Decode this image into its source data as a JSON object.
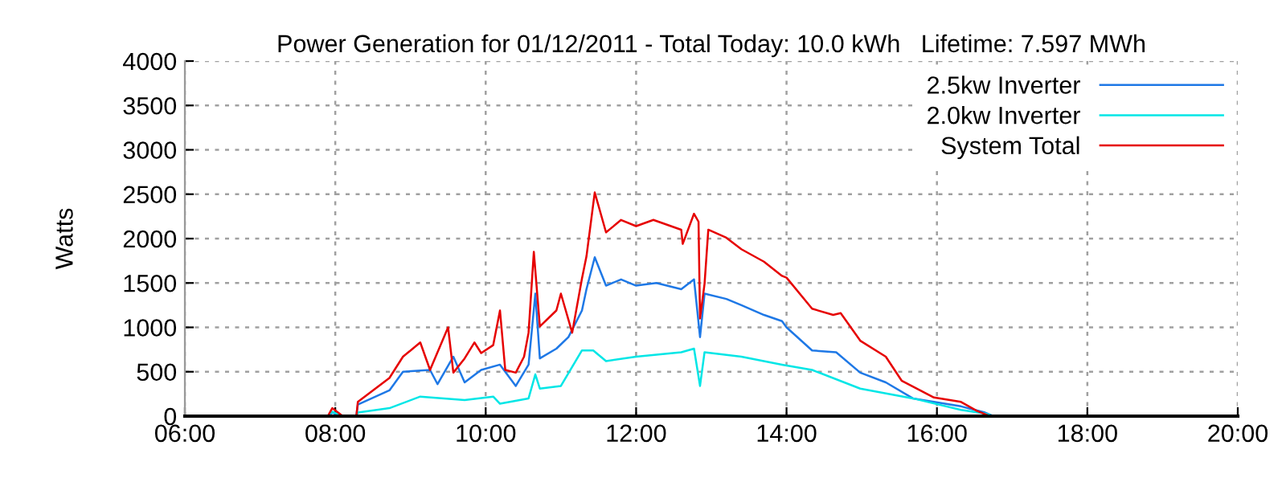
{
  "chart_data": {
    "type": "line",
    "title": "Power Generation for 01/12/2011 - Total Today: 10.0 kWh   Lifetime: 7.597 MWh",
    "ylabel": "Watts",
    "xlim": [
      6,
      20
    ],
    "xticks": [
      {
        "value": 6,
        "label": "06:00"
      },
      {
        "value": 8,
        "label": "08:00"
      },
      {
        "value": 10,
        "label": "10:00"
      },
      {
        "value": 12,
        "label": "12:00"
      },
      {
        "value": 14,
        "label": "14:00"
      },
      {
        "value": 16,
        "label": "16:00"
      },
      {
        "value": 18,
        "label": "18:00"
      },
      {
        "value": 20,
        "label": "20:00"
      }
    ],
    "ylim": [
      0,
      4000
    ],
    "yticks": [
      0,
      500,
      1000,
      1500,
      2000,
      2500,
      3000,
      3500,
      4000
    ],
    "grid": true,
    "legend": "top right",
    "line_style": "solid",
    "marker": "none",
    "series": [
      {
        "name": "2.5kw Inverter",
        "color": "#1e78e6",
        "x": [
          7.9,
          7.96,
          8.1,
          8.28,
          8.3,
          8.72,
          8.9,
          9.26,
          9.36,
          9.57,
          9.72,
          9.94,
          10.19,
          10.4,
          10.57,
          10.66,
          10.72,
          10.94,
          11.1,
          11.28,
          11.34,
          11.45,
          11.6,
          11.8,
          12.0,
          12.27,
          12.6,
          12.77,
          12.85,
          12.91,
          13.2,
          13.4,
          13.7,
          13.94,
          14.0,
          14.34,
          14.66,
          14.98,
          15.32,
          15.68,
          16.32,
          16.64,
          16.75
        ],
        "values": [
          0,
          40,
          0,
          0,
          130,
          290,
          500,
          520,
          360,
          670,
          380,
          520,
          580,
          340,
          580,
          1380,
          650,
          760,
          890,
          1190,
          1430,
          1790,
          1470,
          1540,
          1470,
          1500,
          1430,
          1540,
          890,
          1380,
          1320,
          1250,
          1140,
          1070,
          1000,
          740,
          720,
          490,
          380,
          200,
          110,
          40,
          0
        ]
      },
      {
        "name": "2.0kw Inverter",
        "color": "#00e6e6",
        "x": [
          7.9,
          7.96,
          8.1,
          8.28,
          8.3,
          8.72,
          9.13,
          9.72,
          10.1,
          10.19,
          10.57,
          10.66,
          10.72,
          11.0,
          11.28,
          11.43,
          11.6,
          12.0,
          12.6,
          12.77,
          12.85,
          12.91,
          13.4,
          13.94,
          14.34,
          14.98,
          15.68,
          16.32,
          16.64,
          16.75
        ],
        "values": [
          0,
          50,
          0,
          0,
          40,
          90,
          220,
          180,
          220,
          140,
          200,
          470,
          310,
          340,
          740,
          740,
          620,
          670,
          720,
          760,
          340,
          720,
          670,
          580,
          520,
          310,
          200,
          70,
          30,
          0
        ]
      },
      {
        "name": "System Total",
        "color": "#e60000",
        "x": [
          7.9,
          7.96,
          8.1,
          8.28,
          8.3,
          8.72,
          8.9,
          9.13,
          9.26,
          9.5,
          9.57,
          9.72,
          9.85,
          9.94,
          10.1,
          10.19,
          10.26,
          10.4,
          10.51,
          10.57,
          10.64,
          10.72,
          10.94,
          11.0,
          11.15,
          11.28,
          11.34,
          11.45,
          11.6,
          11.8,
          12.0,
          12.23,
          12.6,
          12.62,
          12.77,
          12.83,
          12.85,
          12.91,
          12.96,
          13.2,
          13.4,
          13.7,
          13.94,
          14.0,
          14.34,
          14.62,
          14.72,
          14.98,
          15.32,
          15.53,
          15.96,
          16.32,
          16.53,
          16.7
        ],
        "values": [
          0,
          90,
          0,
          0,
          160,
          430,
          670,
          830,
          520,
          1000,
          490,
          650,
          830,
          710,
          800,
          1190,
          520,
          490,
          670,
          940,
          1850,
          1010,
          1190,
          1380,
          940,
          1550,
          1800,
          2520,
          2070,
          2210,
          2140,
          2210,
          2100,
          1940,
          2280,
          2190,
          1100,
          1490,
          2100,
          2010,
          1880,
          1740,
          1580,
          1560,
          1210,
          1140,
          1160,
          850,
          670,
          400,
          210,
          160,
          60,
          0
        ]
      }
    ]
  }
}
